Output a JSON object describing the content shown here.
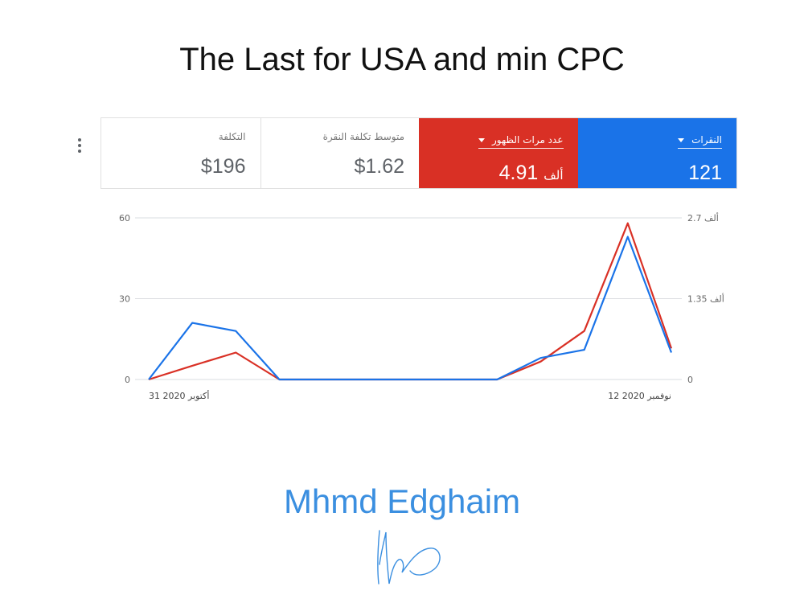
{
  "title": "The Last for USA and min CPC",
  "metrics": [
    {
      "label": "النقرات",
      "value": "121",
      "selected": true,
      "color": "#1a73e8"
    },
    {
      "label": "عدد مرات الظهور",
      "value": "4.91",
      "unit": "ألف",
      "selected": true,
      "color": "#d93025"
    },
    {
      "label": "متوسط تكلفة النقرة",
      "value": "$1.62",
      "selected": false
    },
    {
      "label": "التكلفة",
      "value": "$196",
      "selected": false
    }
  ],
  "more_options_icon": "vertical-dots-icon",
  "chart_data": {
    "type": "line",
    "x": [
      0,
      1,
      2,
      3,
      4,
      5,
      6,
      7,
      8,
      9,
      10,
      11,
      12
    ],
    "x_tick_labels": {
      "first": "31 أكتوبر 2020",
      "last": "12 نوفمبر 2020"
    },
    "left_axis": {
      "ticks": [
        "60",
        "30",
        "0"
      ],
      "ylim": [
        0,
        60
      ]
    },
    "right_axis": {
      "ticks": [
        "2.7 ألف",
        "1.35 ألف",
        "0"
      ],
      "ylim": [
        0,
        2.7
      ]
    },
    "grid": true,
    "series": [
      {
        "name": "النقرات",
        "axis": "left",
        "color": "#1a73e8",
        "values": [
          0,
          21,
          18,
          0,
          0,
          0,
          0,
          0,
          0,
          8,
          11,
          53,
          10
        ]
      },
      {
        "name": "عدد مرات الظهور",
        "axis": "right",
        "color": "#d93025",
        "values": [
          0,
          0.23,
          0.45,
          0,
          0,
          0,
          0,
          0,
          0,
          0.3,
          0.81,
          2.61,
          0.52
        ]
      }
    ]
  },
  "author": "Mhmd Edghaim",
  "author_color": "#3b8fe0"
}
